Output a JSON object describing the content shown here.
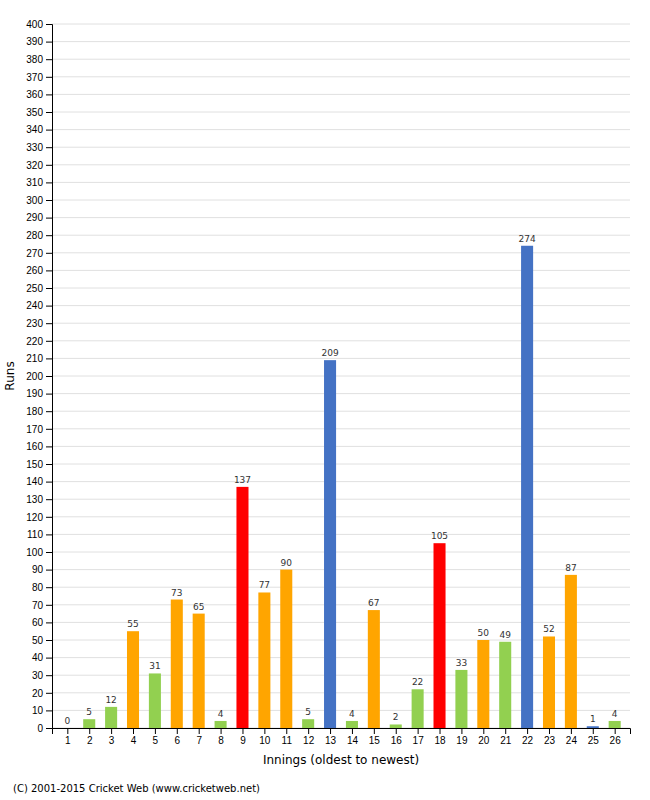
{
  "chart_data": {
    "type": "bar",
    "xlabel": "Innings (oldest to newest)",
    "ylabel": "Runs",
    "x": [
      1,
      2,
      3,
      4,
      5,
      6,
      7,
      8,
      9,
      10,
      11,
      12,
      13,
      14,
      15,
      16,
      17,
      18,
      19,
      20,
      21,
      22,
      23,
      24,
      25,
      26
    ],
    "values": [
      0,
      5,
      12,
      55,
      31,
      73,
      65,
      4,
      137,
      77,
      90,
      5,
      209,
      4,
      67,
      2,
      22,
      105,
      33,
      50,
      49,
      274,
      52,
      87,
      1,
      4
    ],
    "colors": [
      "#4472c4",
      "#92d050",
      "#92d050",
      "#ffa500",
      "#92d050",
      "#ffa500",
      "#ffa500",
      "#92d050",
      "#ff0000",
      "#ffa500",
      "#ffa500",
      "#92d050",
      "#4472c4",
      "#92d050",
      "#ffa500",
      "#92d050",
      "#92d050",
      "#ff0000",
      "#92d050",
      "#ffa500",
      "#92d050",
      "#4472c4",
      "#ffa500",
      "#ffa500",
      "#4472c4",
      "#92d050"
    ],
    "xlim": [
      0.3,
      26.7
    ],
    "xticks": [
      1,
      2,
      3,
      4,
      5,
      6,
      7,
      8,
      9,
      10,
      11,
      12,
      13,
      14,
      15,
      16,
      17,
      18,
      19,
      20,
      21,
      22,
      23,
      24,
      25,
      26
    ],
    "ylim": [
      0,
      400
    ],
    "yticks": [
      0,
      10,
      20,
      30,
      40,
      50,
      60,
      70,
      80,
      90,
      100,
      110,
      120,
      130,
      140,
      150,
      160,
      170,
      180,
      190,
      200,
      210,
      220,
      230,
      240,
      250,
      260,
      270,
      280,
      290,
      300,
      310,
      320,
      330,
      340,
      350,
      360,
      370,
      380,
      390,
      400
    ],
    "grid": true,
    "data_labels": true,
    "footer": "(C) 2001-2015 Cricket Web (www.cricketweb.net)"
  }
}
